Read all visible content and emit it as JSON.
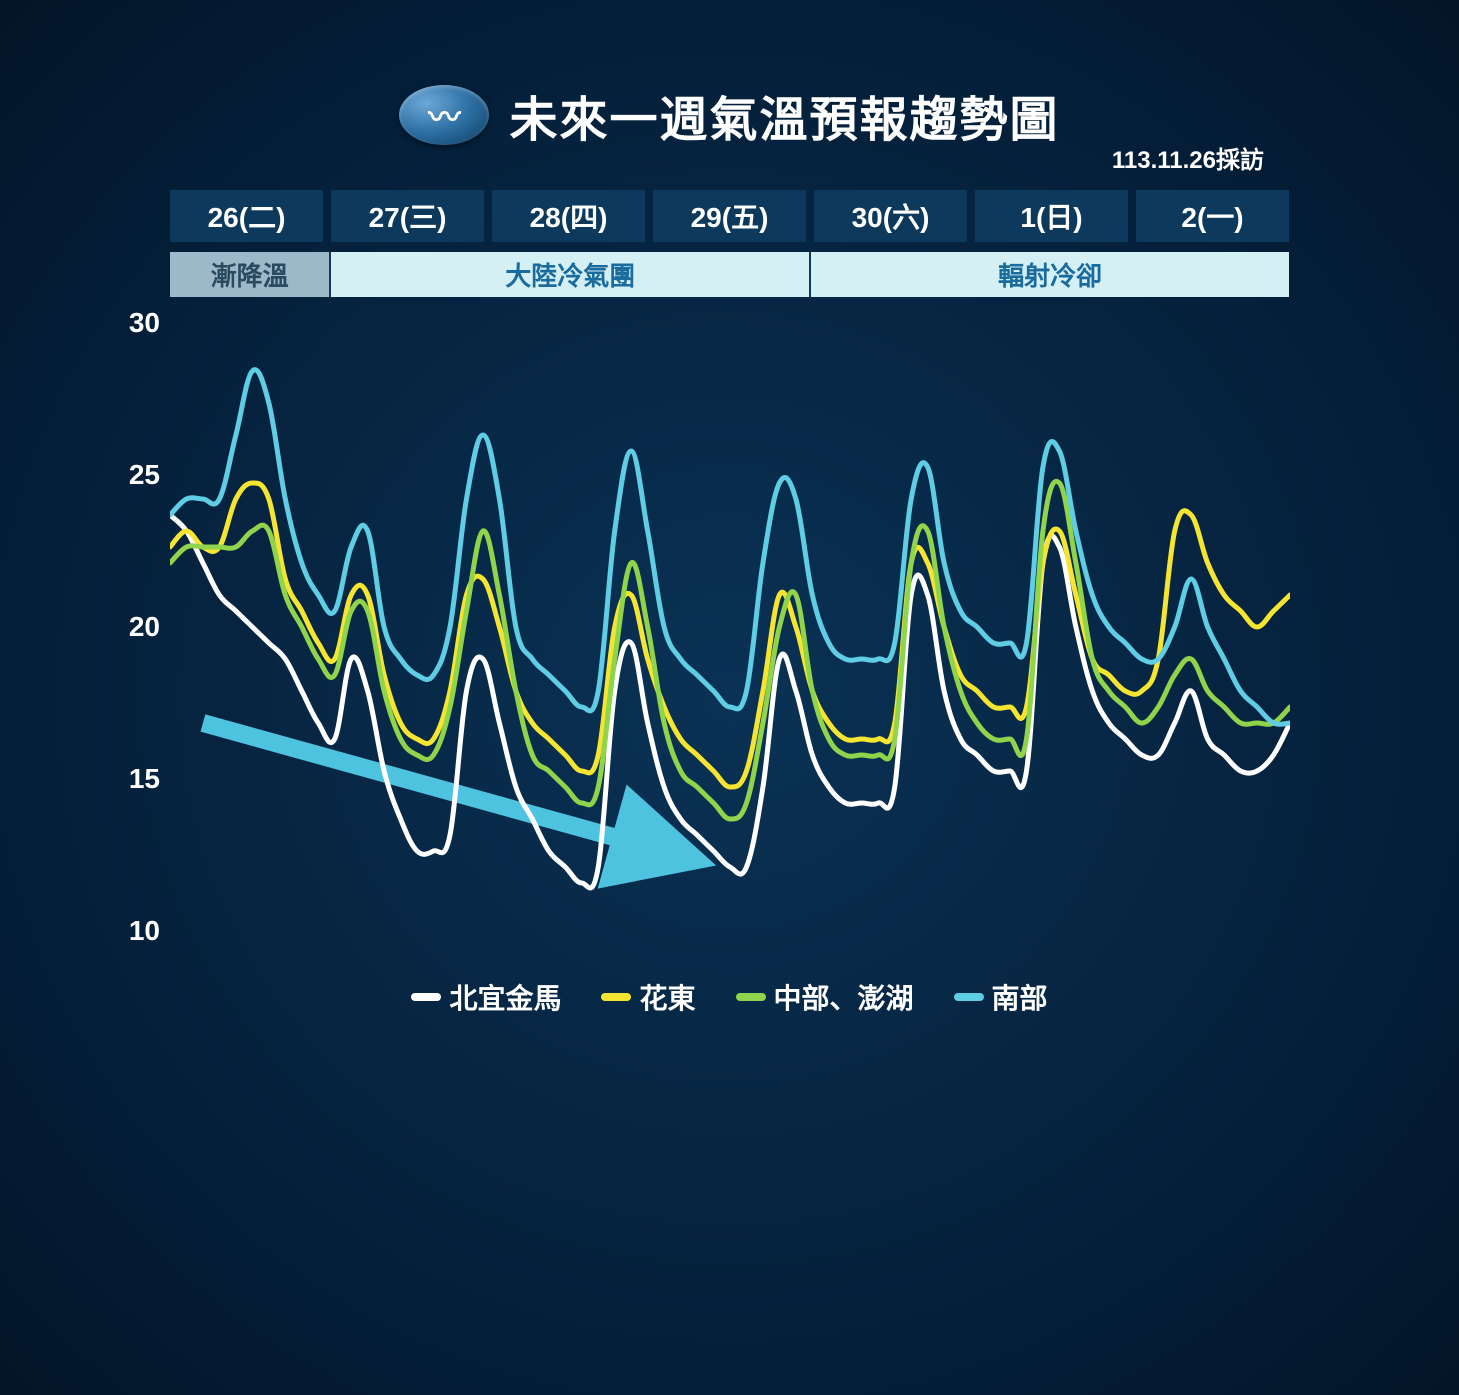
{
  "title": "未來一週氣溫預報趨勢圖",
  "subtitle": "113.11.26採訪",
  "days": [
    {
      "label": "26(二)"
    },
    {
      "label": "27(三)"
    },
    {
      "label": "28(四)"
    },
    {
      "label": "29(五)"
    },
    {
      "label": "30(六)"
    },
    {
      "label": "1(日)"
    },
    {
      "label": "2(一)"
    }
  ],
  "phases": [
    {
      "label": "漸降溫",
      "span": 1,
      "style": "dark"
    },
    {
      "label": "大陸冷氣團",
      "span": 3,
      "style": "light"
    },
    {
      "label": "輻射冷卻",
      "span": 3,
      "style": "light"
    }
  ],
  "chart": {
    "type": "line",
    "ylim": [
      10,
      30
    ],
    "yticks": [
      30,
      25,
      20,
      15,
      10
    ],
    "label_fontsize": 28,
    "label_color": "#ffffff",
    "background_color": "transparent",
    "line_width": 5,
    "arrow": {
      "color": "#4ec3e0",
      "from": [
        2,
        17
      ],
      "to": [
        30,
        13
      ]
    },
    "series": [
      {
        "name": "北宜金馬",
        "color": "#ffffff",
        "values": [
          23.5,
          23,
          22,
          21,
          20.5,
          20,
          19.5,
          19,
          18,
          17,
          16.5,
          19,
          18,
          15.5,
          14,
          13,
          13,
          13.5,
          18,
          19,
          17,
          15,
          14,
          13,
          12.5,
          12,
          12.5,
          18,
          19.5,
          17,
          15,
          14,
          13.5,
          13,
          12.5,
          12.5,
          15,
          19,
          18,
          16,
          15,
          14.5,
          14.5,
          14.5,
          15,
          21,
          21,
          18,
          16.5,
          16,
          15.5,
          15.5,
          15.5,
          22,
          22.5,
          20,
          18,
          17,
          16.5,
          16,
          16,
          17,
          18,
          16.5,
          16,
          15.5,
          15.5,
          16,
          17
        ]
      },
      {
        "name": "花東",
        "color": "#f5e531",
        "values": [
          22.5,
          23,
          22.5,
          22.5,
          24,
          24.5,
          24,
          21.5,
          20.5,
          19.5,
          19,
          21,
          21,
          18.5,
          17,
          16.5,
          16.5,
          18,
          21,
          21.5,
          20,
          18,
          17,
          16.5,
          16,
          15.5,
          16,
          20,
          21,
          19,
          17.5,
          16.5,
          16,
          15.5,
          15,
          15.5,
          18,
          21,
          20,
          18,
          17,
          16.5,
          16.5,
          16.5,
          17,
          22,
          22,
          20,
          18.5,
          18,
          17.5,
          17.5,
          17.5,
          22,
          23,
          21,
          19,
          18.5,
          18,
          18,
          19,
          23,
          23.5,
          22,
          21,
          20.5,
          20,
          20.5,
          21
        ]
      },
      {
        "name": "中部、澎湖",
        "color": "#8fd44a",
        "values": [
          22,
          22.5,
          22.5,
          22.5,
          22.5,
          23,
          23,
          21,
          20,
          19,
          18.5,
          20.5,
          20.5,
          18,
          16.5,
          16,
          16,
          17.5,
          20.5,
          23,
          21,
          18,
          16,
          15.5,
          15,
          14.5,
          15,
          19,
          22,
          20,
          17,
          15.5,
          15,
          14.5,
          14,
          14.5,
          17,
          20,
          21,
          18,
          16.5,
          16,
          16,
          16,
          16.5,
          22,
          23,
          20,
          18,
          17,
          16.5,
          16.5,
          16.5,
          23,
          24.5,
          22,
          19,
          18,
          17.5,
          17,
          17.5,
          18.5,
          19,
          18,
          17.5,
          17,
          17,
          17,
          17.5
        ]
      },
      {
        "name": "南部",
        "color": "#5fcde4",
        "values": [
          23.5,
          24,
          24,
          24,
          26,
          28,
          27,
          24,
          22,
          21,
          20.5,
          22.5,
          23,
          20,
          19,
          18.5,
          18.5,
          20,
          24,
          26,
          24,
          20,
          19,
          18.5,
          18,
          17.5,
          18,
          23,
          25.5,
          23,
          20,
          19,
          18.5,
          18,
          17.5,
          18,
          22,
          24.5,
          24,
          21,
          19.5,
          19,
          19,
          19,
          19.5,
          24,
          25,
          22,
          20.5,
          20,
          19.5,
          19.5,
          19.5,
          25,
          25.5,
          23,
          21,
          20,
          19.5,
          19,
          19,
          20,
          21.5,
          20,
          19,
          18,
          17.5,
          17,
          17
        ]
      }
    ]
  },
  "legend_label_color": "#ffffff",
  "colors": {
    "day_cell_bg": "#0d3a5c",
    "phase_light_bg": "#d4f0f5",
    "phase_light_fg": "#1a6b9e",
    "phase_dark_bg": "#9db8c8",
    "phase_dark_fg": "#2a4a5f"
  }
}
